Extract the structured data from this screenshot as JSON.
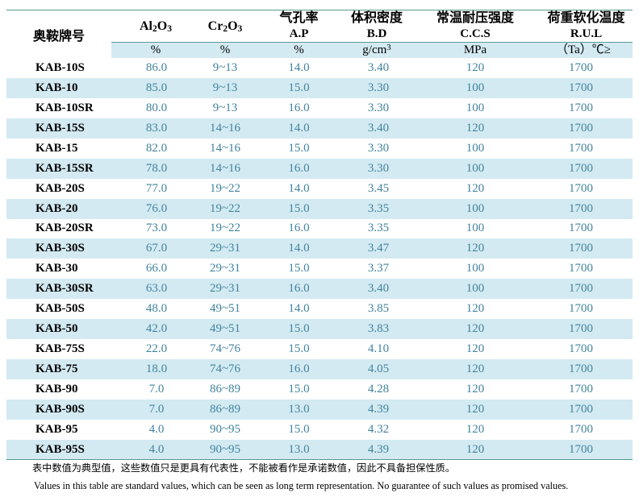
{
  "colors": {
    "band_blue": "#d3eaf2",
    "rule_teal": "#579b93",
    "value_text": "#42839d",
    "header_text": "#000000"
  },
  "table": {
    "brand_header": "奥鞍牌号",
    "columns": [
      {
        "title": "Al₂O₃",
        "subtitle": "",
        "unit": "%"
      },
      {
        "title": "Cr₂O₃",
        "subtitle": "",
        "unit": "%"
      },
      {
        "title": "气孔率",
        "subtitle": "A.P",
        "unit": "%"
      },
      {
        "title": "体积密度",
        "subtitle": "B.D",
        "unit": "g/cm³"
      },
      {
        "title": "常温耐压强度",
        "subtitle": "C.C.S",
        "unit": "MPa"
      },
      {
        "title": "荷重软化温度",
        "subtitle": "R.U.L",
        "unit": "（Ta）℃≥"
      }
    ],
    "rows": [
      {
        "brand": "KAB-10S",
        "values": [
          "86.0",
          "9~13",
          "14.0",
          "3.40",
          "120",
          "1700"
        ]
      },
      {
        "brand": "KAB-10",
        "values": [
          "85.0",
          "9~13",
          "15.0",
          "3.30",
          "100",
          "1700"
        ]
      },
      {
        "brand": "KAB-10SR",
        "values": [
          "80.0",
          "9~13",
          "16.0",
          "3.30",
          "100",
          "1700"
        ]
      },
      {
        "brand": "KAB-15S",
        "values": [
          "83.0",
          "14~16",
          "14.0",
          "3.40",
          "120",
          "1700"
        ]
      },
      {
        "brand": "KAB-15",
        "values": [
          "82.0",
          "14~16",
          "15.0",
          "3.30",
          "100",
          "1700"
        ]
      },
      {
        "brand": "KAB-15SR",
        "values": [
          "78.0",
          "14~16",
          "16.0",
          "3.30",
          "100",
          "1700"
        ]
      },
      {
        "brand": "KAB-20S",
        "values": [
          "77.0",
          "19~22",
          "14.0",
          "3.45",
          "120",
          "1700"
        ]
      },
      {
        "brand": "KAB-20",
        "values": [
          "76.0",
          "19~22",
          "15.0",
          "3.35",
          "100",
          "1700"
        ]
      },
      {
        "brand": "KAB-20SR",
        "values": [
          "73.0",
          "19~22",
          "16.0",
          "3.35",
          "100",
          "1700"
        ]
      },
      {
        "brand": "KAB-30S",
        "values": [
          "67.0",
          "29~31",
          "14.0",
          "3.47",
          "120",
          "1700"
        ]
      },
      {
        "brand": "KAB-30",
        "values": [
          "66.0",
          "29~31",
          "15.0",
          "3.37",
          "100",
          "1700"
        ]
      },
      {
        "brand": "KAB-30SR",
        "values": [
          "63.0",
          "29~31",
          "16.0",
          "3.40",
          "100",
          "1700"
        ]
      },
      {
        "brand": "KAB-50S",
        "values": [
          "48.0",
          "49~51",
          "14.0",
          "3.85",
          "120",
          "1700"
        ]
      },
      {
        "brand": "KAB-50",
        "values": [
          "42.0",
          "49~51",
          "15.0",
          "3.83",
          "120",
          "1700"
        ]
      },
      {
        "brand": "KAB-75S",
        "values": [
          "22.0",
          "74~76",
          "15.0",
          "4.10",
          "120",
          "1700"
        ]
      },
      {
        "brand": "KAB-75",
        "values": [
          "18.0",
          "74~76",
          "16.0",
          "4.05",
          "120",
          "1700"
        ]
      },
      {
        "brand": "KAB-90",
        "values": [
          "7.0",
          "86~89",
          "15.0",
          "4.28",
          "120",
          "1700"
        ]
      },
      {
        "brand": "KAB-90S",
        "values": [
          "7.0",
          "86~89",
          "13.0",
          "4.39",
          "120",
          "1700"
        ]
      },
      {
        "brand": "KAB-95",
        "values": [
          "4.0",
          "90~95",
          "15.0",
          "4.32",
          "120",
          "1700"
        ]
      },
      {
        "brand": "KAB-95S",
        "values": [
          "4.0",
          "90~95",
          "13.0",
          "4.39",
          "120",
          "1700"
        ]
      }
    ]
  },
  "notes": {
    "zh": "表中数值为典型值，这些数值只是更具有代表性，不能被看作是承诺数值，因此不具备担保性质。",
    "en": "Values in this table are standard values, which can be seen as long term representation. No guarantee of such values as promised values."
  }
}
